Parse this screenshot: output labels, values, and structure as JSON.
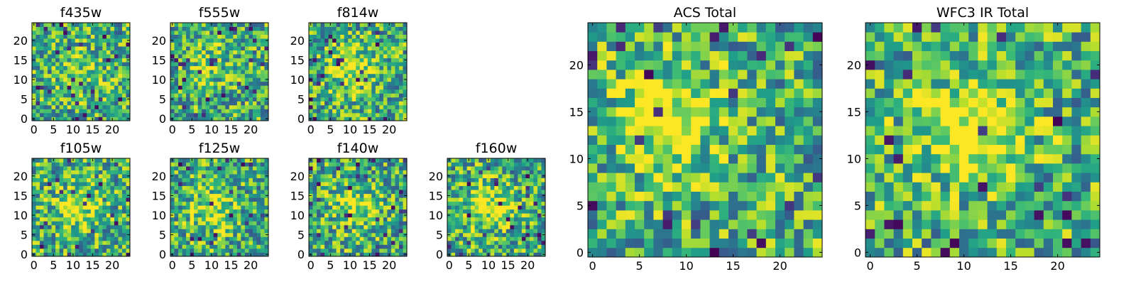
{
  "chart_data": [
    {
      "type": "heatmap",
      "title": "f435w",
      "xticks": [
        0,
        5,
        10,
        15,
        20
      ],
      "yticks": [
        0,
        5,
        10,
        15,
        20
      ],
      "xlim": [
        0,
        24
      ],
      "ylim": [
        0,
        24
      ],
      "grid_size": 25,
      "colormap": "viridis",
      "seed": 11,
      "feature": {
        "cx": 12,
        "cy": 12,
        "strength": 0.15
      }
    },
    {
      "type": "heatmap",
      "title": "f555w",
      "xticks": [
        0,
        5,
        10,
        15,
        20
      ],
      "yticks": [
        0,
        5,
        10,
        15,
        20
      ],
      "xlim": [
        0,
        24
      ],
      "ylim": [
        0,
        24
      ],
      "grid_size": 25,
      "colormap": "viridis",
      "seed": 23,
      "feature": {
        "cx": 9,
        "cy": 14,
        "strength": 0.2
      }
    },
    {
      "type": "heatmap",
      "title": "f814w",
      "xticks": [
        0,
        5,
        10,
        15,
        20
      ],
      "yticks": [
        0,
        5,
        10,
        15,
        20
      ],
      "xlim": [
        0,
        24
      ],
      "ylim": [
        0,
        24
      ],
      "grid_size": 25,
      "colormap": "viridis",
      "seed": 37,
      "feature": {
        "cx": 10,
        "cy": 13,
        "strength": 0.35
      }
    },
    {
      "type": "heatmap",
      "title": "f105w",
      "xticks": [
        0,
        5,
        10,
        15,
        20
      ],
      "yticks": [
        0,
        5,
        10,
        15,
        20
      ],
      "xlim": [
        0,
        24
      ],
      "ylim": [
        0,
        24
      ],
      "grid_size": 25,
      "colormap": "viridis",
      "seed": 41,
      "feature": {
        "cx": 11,
        "cy": 12,
        "strength": 0.35
      }
    },
    {
      "type": "heatmap",
      "title": "f125w",
      "xticks": [
        0,
        5,
        10,
        15,
        20
      ],
      "yticks": [
        0,
        5,
        10,
        15,
        20
      ],
      "xlim": [
        0,
        24
      ],
      "ylim": [
        0,
        24
      ],
      "grid_size": 25,
      "colormap": "viridis",
      "seed": 53,
      "feature": {
        "cx": 10,
        "cy": 11,
        "strength": 0.3
      }
    },
    {
      "type": "heatmap",
      "title": "f140w",
      "xticks": [
        0,
        5,
        10,
        15,
        20
      ],
      "yticks": [
        0,
        5,
        10,
        15,
        20
      ],
      "xlim": [
        0,
        24
      ],
      "ylim": [
        0,
        24
      ],
      "grid_size": 25,
      "colormap": "viridis",
      "seed": 67,
      "feature": {
        "cx": 11,
        "cy": 12,
        "strength": 0.3
      }
    },
    {
      "type": "heatmap",
      "title": "f160w",
      "xticks": [
        0,
        5,
        10,
        15,
        20
      ],
      "yticks": [
        0,
        5,
        10,
        15,
        20
      ],
      "xlim": [
        0,
        24
      ],
      "ylim": [
        0,
        24
      ],
      "grid_size": 25,
      "colormap": "viridis",
      "seed": 79,
      "feature": {
        "cx": 10,
        "cy": 12,
        "strength": 0.35
      }
    },
    {
      "type": "heatmap",
      "title": "ACS Total",
      "xticks": [
        0,
        5,
        10,
        15,
        20
      ],
      "yticks": [
        0,
        5,
        10,
        15,
        20
      ],
      "xlim": [
        0,
        24
      ],
      "ylim": [
        0,
        24
      ],
      "grid_size": 25,
      "colormap": "viridis",
      "seed": 97,
      "feature": {
        "cx": 8,
        "cy": 14,
        "strength": 0.4
      }
    },
    {
      "type": "heatmap",
      "title": "WFC3 IR Total",
      "xticks": [
        0,
        5,
        10,
        15,
        20
      ],
      "yticks": [
        0,
        5,
        10,
        15,
        20
      ],
      "xlim": [
        0,
        24
      ],
      "ylim": [
        0,
        24
      ],
      "grid_size": 25,
      "colormap": "viridis",
      "seed": 113,
      "feature": {
        "cx": 11,
        "cy": 13,
        "strength": 0.5
      }
    }
  ]
}
